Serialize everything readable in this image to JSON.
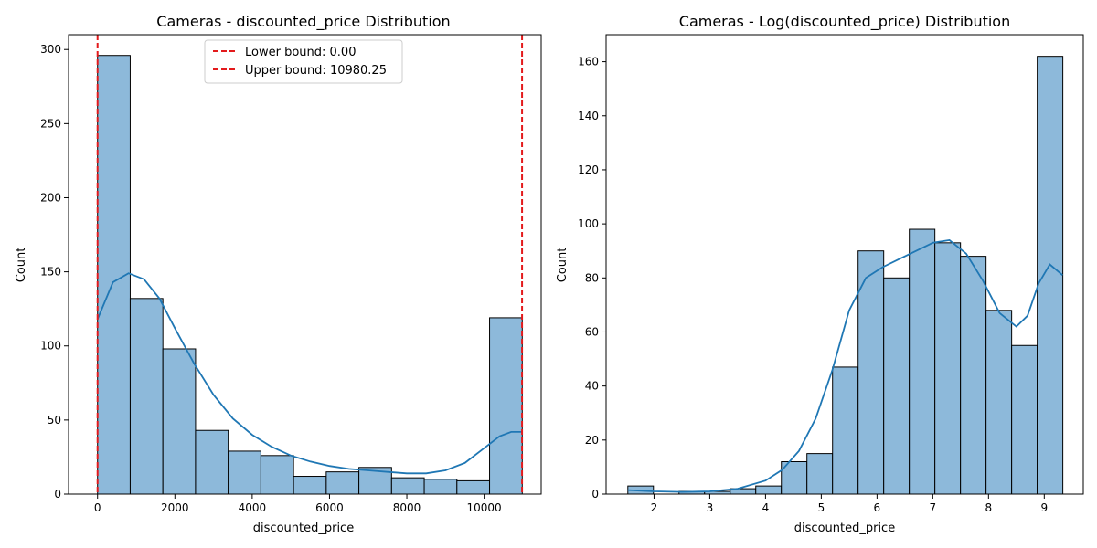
{
  "chart_data": [
    {
      "type": "bar",
      "title": "Cameras - discounted_price Distribution",
      "xlabel": "discounted_price",
      "ylabel": "Count",
      "xlim": [
        -750,
        11475
      ],
      "ylim": [
        0,
        310
      ],
      "xticks": [
        0,
        2000,
        4000,
        6000,
        8000,
        10000
      ],
      "yticks": [
        0,
        50,
        100,
        150,
        200,
        250,
        300
      ],
      "bins": {
        "start": 0,
        "width": 845,
        "counts": [
          296,
          132,
          98,
          43,
          29,
          26,
          12,
          15,
          18,
          11,
          10,
          9,
          119
        ]
      },
      "kde": {
        "x": [
          0,
          400,
          800,
          1200,
          1600,
          2000,
          2500,
          3000,
          3500,
          4000,
          4500,
          5000,
          5500,
          6000,
          6500,
          7000,
          7500,
          8000,
          8500,
          9000,
          9500,
          10000,
          10400,
          10700,
          10980
        ],
        "y": [
          118,
          143,
          149,
          145,
          132,
          112,
          88,
          67,
          51,
          40,
          32,
          26,
          22,
          19,
          17,
          16,
          15,
          14,
          14,
          16,
          21,
          31,
          39,
          42,
          42
        ]
      },
      "vlines": [
        {
          "x": 0.0,
          "label": "Lower bound: 0.00",
          "color": "#e31a1c"
        },
        {
          "x": 10980.25,
          "label": "Upper bound: 10980.25",
          "color": "#e31a1c"
        }
      ],
      "legend_position": "upper-center",
      "grid": false
    },
    {
      "type": "bar",
      "title": "Cameras - Log(discounted_price) Distribution",
      "xlabel": "discounted_price",
      "ylabel": "Count",
      "xlim": [
        1.14,
        9.7
      ],
      "ylim": [
        0,
        170
      ],
      "xticks": [
        2,
        3,
        4,
        5,
        6,
        7,
        8,
        9
      ],
      "yticks": [
        0,
        20,
        40,
        60,
        80,
        100,
        120,
        140,
        160
      ],
      "bins": {
        "start": 1.53,
        "width": 0.459,
        "counts": [
          3,
          0,
          1,
          1,
          2,
          3,
          12,
          15,
          47,
          90,
          80,
          98,
          93,
          88,
          68,
          55,
          162
        ]
      },
      "kde": {
        "x": [
          1.53,
          2.0,
          2.5,
          3.0,
          3.5,
          4.0,
          4.3,
          4.6,
          4.9,
          5.2,
          5.5,
          5.8,
          6.1,
          6.4,
          6.7,
          7.0,
          7.3,
          7.6,
          7.9,
          8.2,
          8.5,
          8.7,
          8.9,
          9.1,
          9.33
        ],
        "y": [
          1.5,
          1.0,
          0.8,
          1.0,
          2.0,
          5.0,
          9.0,
          16.0,
          28.0,
          46.0,
          68.0,
          80.0,
          84.0,
          87.0,
          90.0,
          93.0,
          94.0,
          89.0,
          79.0,
          67.0,
          62.0,
          66.0,
          78.0,
          85.0,
          81.0
        ]
      },
      "grid": false
    }
  ],
  "colors": {
    "bar_fill": "#8db9da",
    "bar_edge": "#000000",
    "kde_line": "#1f77b4",
    "bound_line": "#e31a1c"
  }
}
